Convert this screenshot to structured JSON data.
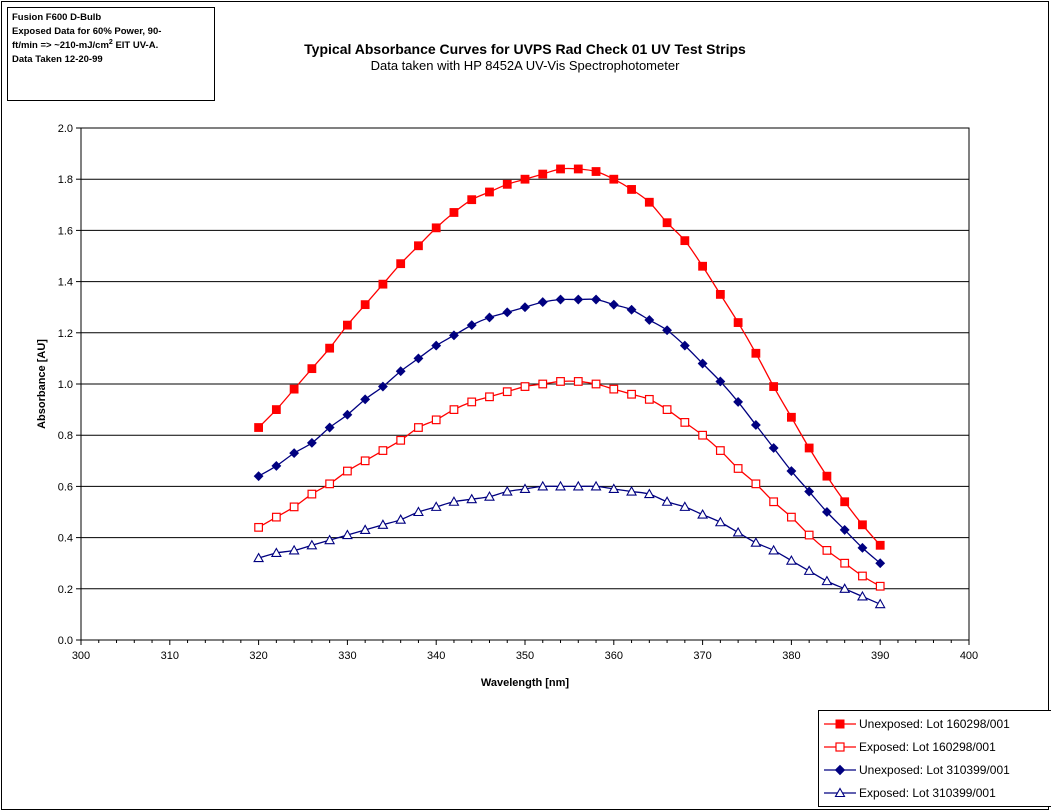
{
  "note": {
    "line1": "Fusion F600 D-Bulb",
    "line2": "Exposed Data for 60% Power, 90-",
    "line3_pre": "ft/min => ~210-mJ/cm",
    "line3_sup": "2",
    "line3_post": " EIT UV-A.",
    "line4": "Data Taken 12-20-99"
  },
  "chart_data": {
    "type": "line",
    "title": "Typical Absorbance Curves for UVPS Rad Check 01 UV Test Strips",
    "subtitle": "Data taken with HP 8452A UV-Vis Spectrophotometer",
    "xlabel": "Wavelength [nm]",
    "ylabel": "Absorbance [AU]",
    "xlim": [
      300,
      400
    ],
    "ylim": [
      0,
      2
    ],
    "xticks": [
      300,
      310,
      320,
      330,
      340,
      350,
      360,
      370,
      380,
      390,
      400
    ],
    "yticks": [
      "0.0",
      "0.2",
      "0.4",
      "0.6",
      "0.8",
      "1.0",
      "1.2",
      "1.4",
      "1.6",
      "1.8",
      "2.0"
    ],
    "grid": "horizontal",
    "legend_position": "bottom-right",
    "x": [
      320,
      322,
      324,
      326,
      328,
      330,
      332,
      334,
      336,
      338,
      340,
      342,
      344,
      346,
      348,
      350,
      352,
      354,
      356,
      358,
      360,
      362,
      364,
      366,
      368,
      370,
      372,
      374,
      376,
      378,
      380,
      382,
      384,
      386,
      388,
      390
    ],
    "series": [
      {
        "name": "Unexposed: Lot 160298/001",
        "color": "#ff0000",
        "marker": "filled-square",
        "values": [
          0.83,
          0.9,
          0.98,
          1.06,
          1.14,
          1.23,
          1.31,
          1.39,
          1.47,
          1.54,
          1.61,
          1.67,
          1.72,
          1.75,
          1.78,
          1.8,
          1.82,
          1.84,
          1.84,
          1.83,
          1.8,
          1.76,
          1.71,
          1.63,
          1.56,
          1.46,
          1.35,
          1.24,
          1.12,
          0.99,
          0.87,
          0.75,
          0.64,
          0.54,
          0.45,
          0.37
        ]
      },
      {
        "name": "Exposed: Lot 160298/001",
        "color": "#ff0000",
        "marker": "open-square",
        "values": [
          0.44,
          0.48,
          0.52,
          0.57,
          0.61,
          0.66,
          0.7,
          0.74,
          0.78,
          0.83,
          0.86,
          0.9,
          0.93,
          0.95,
          0.97,
          0.99,
          1.0,
          1.01,
          1.01,
          1.0,
          0.98,
          0.96,
          0.94,
          0.9,
          0.85,
          0.8,
          0.74,
          0.67,
          0.61,
          0.54,
          0.48,
          0.41,
          0.35,
          0.3,
          0.25,
          0.21
        ]
      },
      {
        "name": "Unexposed: Lot 310399/001",
        "color": "#000080",
        "marker": "filled-diamond",
        "values": [
          0.64,
          0.68,
          0.73,
          0.77,
          0.83,
          0.88,
          0.94,
          0.99,
          1.05,
          1.1,
          1.15,
          1.19,
          1.23,
          1.26,
          1.28,
          1.3,
          1.32,
          1.33,
          1.33,
          1.33,
          1.31,
          1.29,
          1.25,
          1.21,
          1.15,
          1.08,
          1.01,
          0.93,
          0.84,
          0.75,
          0.66,
          0.58,
          0.5,
          0.43,
          0.36,
          0.3
        ]
      },
      {
        "name": "Exposed: Lot 310399/001",
        "color": "#000080",
        "marker": "open-triangle",
        "values": [
          0.32,
          0.34,
          0.35,
          0.37,
          0.39,
          0.41,
          0.43,
          0.45,
          0.47,
          0.5,
          0.52,
          0.54,
          0.55,
          0.56,
          0.58,
          0.59,
          0.6,
          0.6,
          0.6,
          0.6,
          0.59,
          0.58,
          0.57,
          0.54,
          0.52,
          0.49,
          0.46,
          0.42,
          0.38,
          0.35,
          0.31,
          0.27,
          0.23,
          0.2,
          0.17,
          0.14
        ]
      }
    ]
  }
}
